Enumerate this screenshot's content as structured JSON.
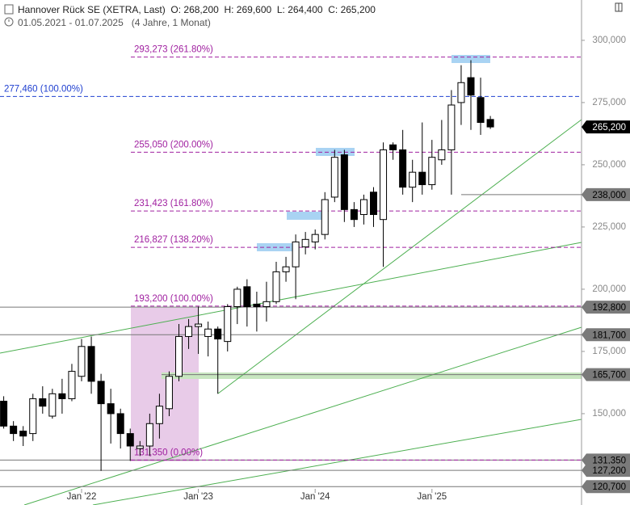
{
  "header": {
    "title": "Hannover Rück SE (XETRA, Last)",
    "ohlc": [
      "O: 268,200",
      "H: 269,600",
      "L: 264,400",
      "C: 265,200"
    ],
    "range": "01.05.2021 - 01.07.2025",
    "span": "(4 Jahre, 1 Monat)"
  },
  "chart_data": {
    "type": "candlestick",
    "categories": [
      null,
      null,
      null,
      null,
      null,
      null,
      null,
      null,
      "Jan '22",
      null,
      null,
      null,
      null,
      null,
      null,
      null,
      null,
      null,
      null,
      null,
      "Jan '23",
      null,
      null,
      null,
      null,
      null,
      null,
      null,
      null,
      null,
      null,
      null,
      "Jan '24",
      null,
      null,
      null,
      null,
      null,
      null,
      null,
      null,
      null,
      null,
      null,
      "Jan '25",
      null,
      null,
      null,
      null,
      null,
      null
    ],
    "open": [
      155,
      145,
      143,
      142,
      156,
      149,
      158,
      156,
      165,
      177,
      163,
      154,
      150,
      142,
      136,
      137,
      146,
      152,
      165,
      181,
      185,
      181,
      184,
      179,
      193,
      201,
      194,
      193,
      195,
      207,
      209,
      217,
      219,
      222,
      237,
      254,
      232,
      230,
      239,
      228,
      258,
      256,
      241,
      247,
      242,
      252,
      256,
      275,
      285,
      277,
      268.2
    ],
    "high": [
      157,
      147,
      145,
      158,
      161,
      160,
      164,
      170,
      180,
      181,
      166,
      160,
      152,
      144,
      139,
      150,
      158,
      167,
      186,
      188,
      193,
      187,
      185,
      194,
      201,
      204,
      199,
      203,
      211,
      213,
      222,
      223,
      224,
      239,
      256,
      256,
      235,
      238,
      241,
      259,
      259,
      264,
      252,
      267,
      260,
      268,
      280,
      290,
      292,
      285,
      269.6
    ],
    "low": [
      144,
      139,
      137,
      139,
      150,
      148,
      150,
      155,
      163,
      158,
      127,
      138,
      136,
      131,
      133,
      133,
      140,
      149,
      163,
      176,
      174,
      173,
      158,
      175,
      186,
      185,
      183,
      187,
      194,
      203,
      196,
      214,
      216,
      220,
      235,
      227,
      225,
      226,
      225,
      209,
      252,
      238,
      235,
      238,
      240,
      250,
      238,
      266,
      264,
      262,
      264.4
    ],
    "close": [
      145,
      142,
      141,
      156,
      153,
      158,
      156,
      167,
      177,
      163,
      154,
      150,
      142,
      137,
      137,
      146,
      153,
      165,
      181,
      185,
      186,
      184,
      180,
      193,
      200,
      193,
      193,
      195,
      207,
      209,
      219,
      220,
      222,
      236,
      253,
      232,
      228,
      236,
      230,
      256,
      256,
      241,
      247,
      242,
      253,
      256,
      274,
      283,
      278,
      267,
      265.2
    ],
    "up_color": "#ffffff",
    "down_color": "#000000",
    "ylim": [
      113.3,
      316.2
    ],
    "yticks": [
      {
        "value": 150,
        "label": "150,000"
      },
      {
        "value": 175,
        "label": "175,000"
      },
      {
        "value": 200,
        "label": "200,000"
      },
      {
        "value": 225,
        "label": "225,000"
      },
      {
        "value": 250,
        "label": "250,000"
      },
      {
        "value": 275,
        "label": "275,000"
      },
      {
        "value": 300,
        "label": "300,000"
      }
    ],
    "fib_levels": [
      {
        "value": 293.273,
        "label": "293,273 (261.80%)",
        "color": "#a020a0"
      },
      {
        "value": 277.46,
        "label": "277,460 (100.00%)",
        "color": "#2040d0"
      },
      {
        "value": 255.05,
        "label": "255,050 (200.00%)",
        "color": "#a020a0"
      },
      {
        "value": 231.423,
        "label": "231,423 (161.80%)",
        "color": "#a020a0"
      },
      {
        "value": 216.827,
        "label": "216,827 (138.20%)",
        "color": "#a020a0"
      },
      {
        "value": 193.2,
        "label": "193,200 (100.00%)",
        "color": "#a020a0"
      },
      {
        "value": 131.35,
        "label": "131,350 (0.00%)",
        "color": "#a020a0"
      }
    ],
    "levels": [
      {
        "value": 238,
        "label": "238,000"
      },
      {
        "value": 192.8,
        "label": "192,800"
      },
      {
        "value": 181.7,
        "label": "181,700"
      },
      {
        "value": 165.7,
        "label": "165,700"
      },
      {
        "value": 131.35,
        "label": "131,350"
      },
      {
        "value": 127.2,
        "label": "127,200"
      },
      {
        "value": 120.7,
        "label": "120,700"
      }
    ],
    "last": {
      "value": 265.2,
      "label": "265,200"
    }
  }
}
